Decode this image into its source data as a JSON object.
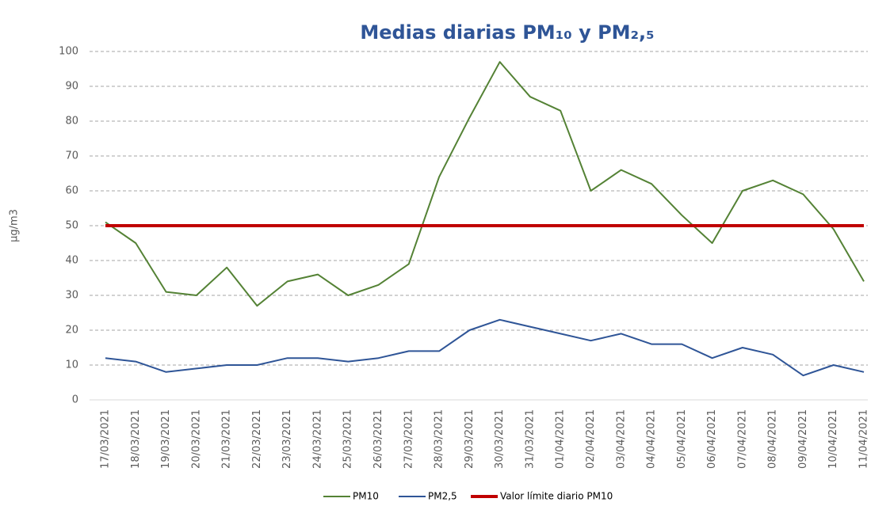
{
  "chart_data": {
    "type": "line",
    "title": "Medias diarias PM₁₀ y PM₂,₅",
    "y_label": "µg/m3",
    "categories": [
      "17/03/2021",
      "18/03/2021",
      "19/03/2021",
      "20/03/2021",
      "21/03/2021",
      "22/03/2021",
      "23/03/2021",
      "24/03/2021",
      "25/03/2021",
      "26/03/2021",
      "27/03/2021",
      "28/03/2021",
      "29/03/2021",
      "30/03/2021",
      "31/03/2021",
      "01/04/2021",
      "02/04/2021",
      "03/04/2021",
      "04/04/2021",
      "05/04/2021",
      "06/04/2021",
      "07/04/2021",
      "08/04/2021",
      "09/04/2021",
      "10/04/2021",
      "11/04/2021"
    ],
    "series": [
      {
        "name": "PM10",
        "color": "#548235",
        "values": [
          51,
          45,
          31,
          30,
          38,
          27,
          34,
          36,
          30,
          33,
          39,
          64,
          81,
          97,
          87,
          83,
          60,
          66,
          62,
          53,
          45,
          60,
          63,
          59,
          49,
          34
        ]
      },
      {
        "name": "PM2,5",
        "color": "#2f5597",
        "values": [
          12,
          11,
          8,
          9,
          10,
          10,
          12,
          12,
          11,
          12,
          14,
          14,
          20,
          23,
          21,
          19,
          17,
          19,
          16,
          16,
          12,
          15,
          13,
          7,
          10,
          8
        ]
      },
      {
        "name": "Valor límite diario PM10",
        "color": "#c00000",
        "values": [
          50,
          50,
          50,
          50,
          50,
          50,
          50,
          50,
          50,
          50,
          50,
          50,
          50,
          50,
          50,
          50,
          50,
          50,
          50,
          50,
          50,
          50,
          50,
          50,
          50,
          50
        ]
      }
    ],
    "ylim": [
      0,
      100
    ],
    "yticks": [
      0,
      10,
      20,
      30,
      40,
      50,
      60,
      70,
      80,
      90,
      100
    ],
    "grid": true,
    "legend": "bottom"
  }
}
